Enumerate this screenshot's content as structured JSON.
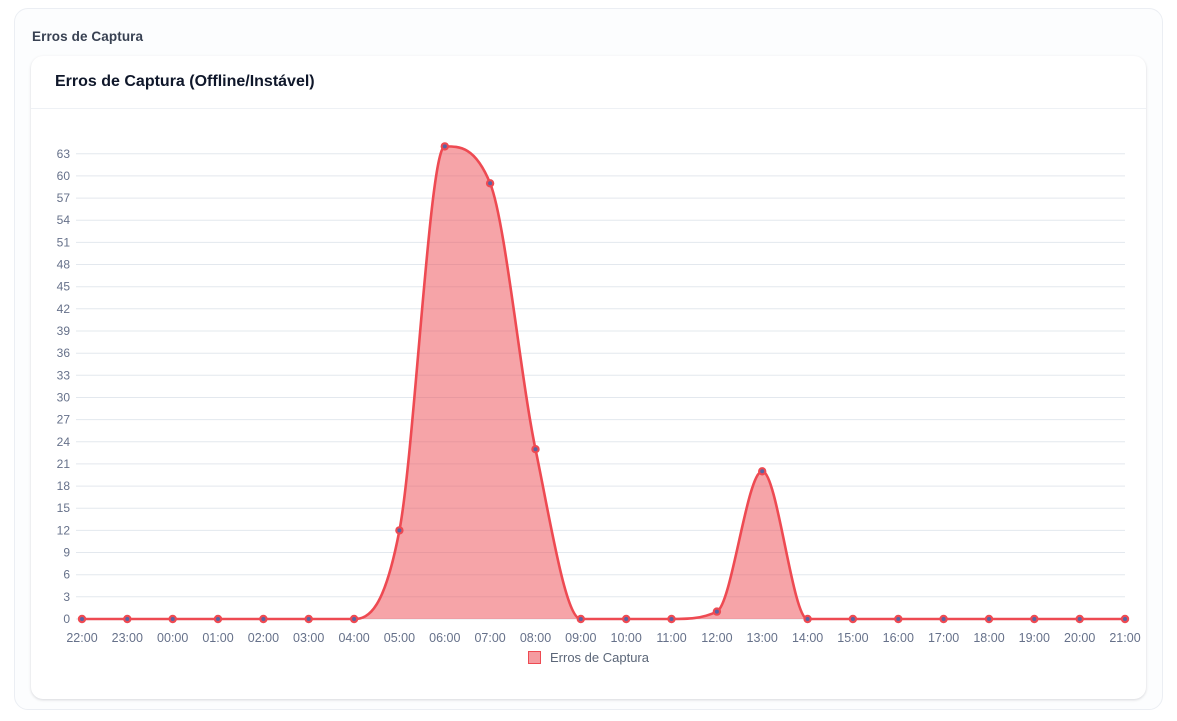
{
  "panel": {
    "label": "Erros de Captura"
  },
  "card": {
    "title": "Erros de Captura (Offline/Instável)"
  },
  "legend": {
    "label": "Erros de Captura"
  },
  "colors": {
    "line": "#ee4a52",
    "fill": "rgba(238,74,82,0.5)",
    "legend_fill": "#f59ba0",
    "point_center": "#5864a3",
    "grid": "#e3e8ee",
    "axis_text": "#66718a"
  },
  "chart_data": {
    "type": "area",
    "title": "Erros de Captura (Offline/Instável)",
    "x": [
      "22:00",
      "23:00",
      "00:00",
      "01:00",
      "02:00",
      "03:00",
      "04:00",
      "05:00",
      "06:00",
      "07:00",
      "08:00",
      "09:00",
      "10:00",
      "11:00",
      "12:00",
      "13:00",
      "14:00",
      "15:00",
      "16:00",
      "17:00",
      "18:00",
      "19:00",
      "20:00",
      "21:00"
    ],
    "series": [
      {
        "name": "Erros de Captura",
        "values": [
          0,
          0,
          0,
          0,
          0,
          0,
          0,
          12,
          64,
          59,
          23,
          0,
          0,
          0,
          1,
          20,
          0,
          0,
          0,
          0,
          0,
          0,
          0,
          0
        ]
      }
    ],
    "xlabel": "",
    "ylabel": "",
    "ylim": [
      0,
      65
    ],
    "y_tick_step": 3,
    "y_tick_max": 63,
    "grid": true,
    "legend_position": "bottom"
  }
}
